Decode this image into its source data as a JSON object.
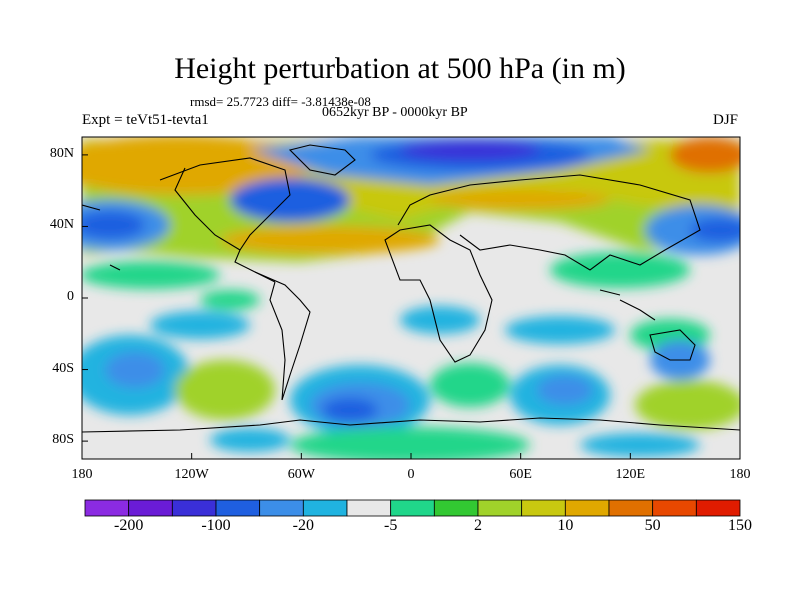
{
  "title": "Height perturbation at 500 hPa (in m)",
  "subtitle_stats": "rmsd= 25.7723 diff= -3.81438e-08",
  "subtitle_period": "0652kyr BP - 0000kyr BP",
  "experiment": "Expt = teVt51-tevta1",
  "season": "DJF",
  "y_ticks": [
    {
      "value": 80,
      "label": "80N"
    },
    {
      "value": 40,
      "label": "40N"
    },
    {
      "value": 0,
      "label": "0"
    },
    {
      "value": -40,
      "label": "40S"
    },
    {
      "value": -80,
      "label": "80S"
    }
  ],
  "x_ticks": [
    {
      "value": -180,
      "label": "180"
    },
    {
      "value": -120,
      "label": "120W"
    },
    {
      "value": -60,
      "label": "60W"
    },
    {
      "value": 0,
      "label": "0"
    },
    {
      "value": 60,
      "label": "60E"
    },
    {
      "value": 120,
      "label": "120E"
    },
    {
      "value": 180,
      "label": "180"
    }
  ],
  "colorbar": {
    "colors": [
      "#8b2be2",
      "#6a1cd6",
      "#3a2fd8",
      "#1f5fe0",
      "#3c8ee8",
      "#20b3e0",
      "#e8e8e8",
      "#20d68a",
      "#32c832",
      "#a0d22a",
      "#c8c810",
      "#e0a800",
      "#e07000",
      "#e84800",
      "#e01c00"
    ],
    "labels": [
      {
        "index": 1,
        "text": "-200"
      },
      {
        "index": 3,
        "text": "-100"
      },
      {
        "index": 5,
        "text": "-20"
      },
      {
        "index": 7,
        "text": "-5"
      },
      {
        "index": 9,
        "text": "2"
      },
      {
        "index": 11,
        "text": "10"
      },
      {
        "index": 13,
        "text": "50"
      },
      {
        "index": 15,
        "text": "150"
      }
    ]
  }
}
